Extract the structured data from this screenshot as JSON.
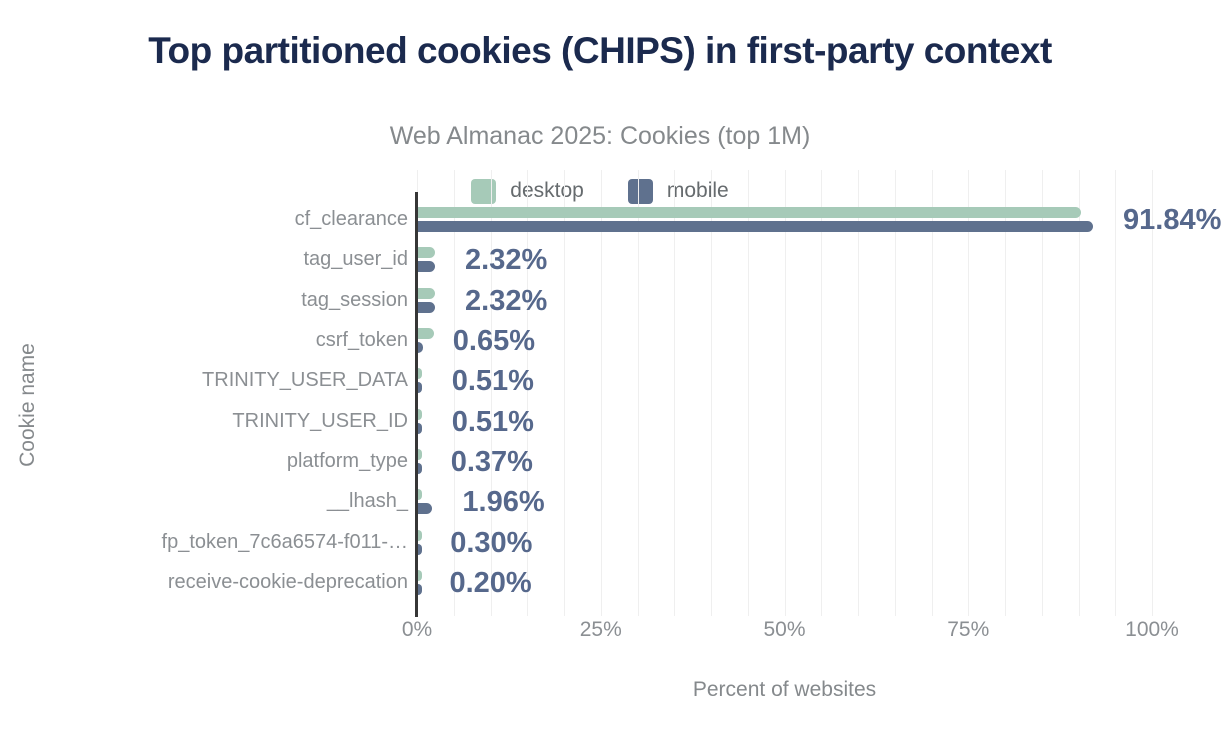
{
  "title": "Top partitioned cookies (CHIPS) in first-party context",
  "subtitle": "Web Almanac 2025: Cookies (top 1M)",
  "legend": {
    "desktop_label": "desktop",
    "mobile_label": "mobile"
  },
  "colors": {
    "desktop": "#a6cab8",
    "mobile": "#5f718e",
    "title": "#1b2a4e",
    "value_label": "#56688c",
    "gridline": "#efefef",
    "axis_line": "#363636"
  },
  "chart_data": {
    "type": "bar",
    "orientation": "horizontal",
    "title": "Top partitioned cookies (CHIPS) in first-party context",
    "subtitle": "Web Almanac 2025: Cookies (top 1M)",
    "xlabel": "Percent of websites",
    "ylabel": "Cookie name",
    "xlim": [
      0,
      100
    ],
    "xticks": [
      {
        "value": 0,
        "label": "0%"
      },
      {
        "value": 25,
        "label": "25%"
      },
      {
        "value": 50,
        "label": "50%"
      },
      {
        "value": 75,
        "label": "75%"
      },
      {
        "value": 100,
        "label": "100%"
      }
    ],
    "grid": "minor-vertical-every-5pct",
    "legend_position": "top",
    "categories": [
      "cf_clearance",
      "tag_user_id",
      "tag_session",
      "csrf_token",
      "TRINITY_USER_DATA",
      "TRINITY_USER_ID",
      "platform_type",
      "__lhash_",
      "fp_token_7c6a6574-f011-…",
      "receive-cookie-deprecation"
    ],
    "series": [
      {
        "name": "desktop",
        "color": "#a6cab8",
        "values": [
          90.2,
          2.3,
          2.3,
          2.2,
          0.6,
          0.6,
          0.45,
          0.5,
          0.4,
          0.25
        ]
      },
      {
        "name": "mobile",
        "color": "#5f718e",
        "values": [
          91.84,
          2.32,
          2.32,
          0.65,
          0.51,
          0.51,
          0.37,
          1.96,
          0.3,
          0.2
        ],
        "labels": [
          "91.84%",
          "2.32%",
          "2.32%",
          "0.65%",
          "0.51%",
          "0.51%",
          "0.37%",
          "1.96%",
          "0.30%",
          "0.20%"
        ]
      }
    ]
  }
}
